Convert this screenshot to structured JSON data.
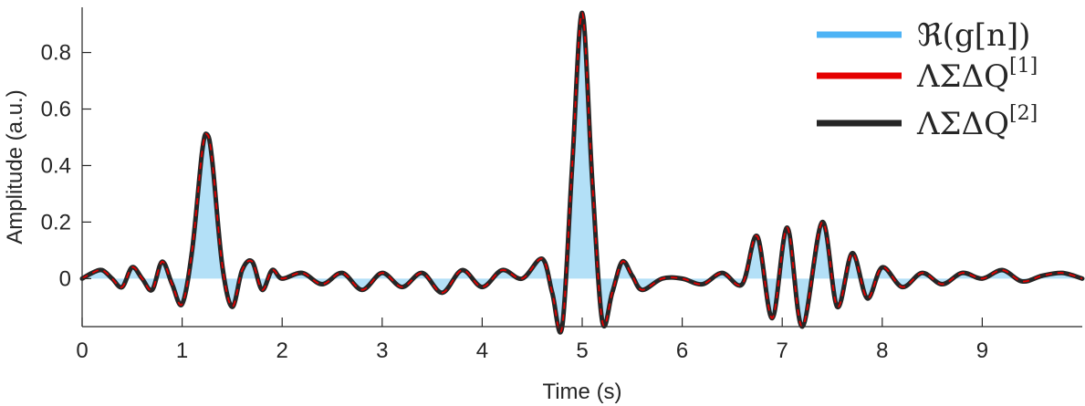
{
  "chart_data": {
    "type": "line",
    "xlabel": "Time (s)",
    "ylabel": "Amplitude (a.u.)",
    "xlim": [
      0,
      10
    ],
    "ylim": [
      -0.17,
      0.96
    ],
    "x_ticks": [
      "0",
      "1",
      "2",
      "3",
      "4",
      "5",
      "6",
      "7",
      "8",
      "9"
    ],
    "y_ticks": [
      "0",
      "0.2",
      "0.4",
      "0.6",
      "0.8"
    ],
    "grid": false,
    "legend_position": "top-right",
    "legend": [
      {
        "main": "ℜ(g[n])",
        "sup": ""
      },
      {
        "main": "ΛΣΔQ",
        "sup": "[1]"
      },
      {
        "main": "ΛΣΔQ",
        "sup": "[2]"
      }
    ],
    "colors": {
      "fill": "#b3e0f7",
      "legend_blue": "#4db3f5",
      "red": "#e50000",
      "black": "#262626",
      "axis": "#262626"
    },
    "series": [
      {
        "name": "ℜ(g[n])",
        "style": "filled-stem",
        "x": [
          0,
          0.1,
          0.2,
          0.3,
          0.4,
          0.5,
          0.6,
          0.7,
          0.8,
          0.9,
          1.0,
          1.1,
          1.2,
          1.25,
          1.3,
          1.4,
          1.5,
          1.6,
          1.7,
          1.8,
          1.9,
          2.0,
          2.2,
          2.4,
          2.6,
          2.8,
          3.0,
          3.2,
          3.4,
          3.6,
          3.8,
          4.0,
          4.2,
          4.4,
          4.6,
          4.7,
          4.8,
          4.9,
          5.0,
          5.1,
          5.2,
          5.3,
          5.4,
          5.5,
          5.6,
          5.8,
          6.0,
          6.2,
          6.4,
          6.6,
          6.75,
          6.9,
          7.05,
          7.2,
          7.4,
          7.55,
          7.7,
          7.85,
          8.0,
          8.2,
          8.4,
          8.6,
          8.8,
          9.0,
          9.2,
          9.4,
          9.6,
          9.8,
          10.0
        ],
        "y": [
          0,
          0.02,
          0.03,
          0.0,
          -0.03,
          0.04,
          0.0,
          -0.04,
          0.06,
          -0.02,
          -0.09,
          0.1,
          0.45,
          0.51,
          0.42,
          0.05,
          -0.1,
          0.03,
          0.06,
          -0.04,
          0.03,
          0.0,
          0.02,
          -0.02,
          0.02,
          -0.04,
          0.02,
          -0.03,
          0.02,
          -0.05,
          0.03,
          -0.03,
          0.03,
          0.0,
          0.07,
          -0.05,
          -0.17,
          0.4,
          0.94,
          0.35,
          -0.15,
          -0.05,
          0.06,
          0.01,
          -0.04,
          0.0,
          0.0,
          -0.02,
          0.02,
          -0.02,
          0.15,
          -0.14,
          0.18,
          -0.17,
          0.2,
          -0.1,
          0.09,
          -0.07,
          0.04,
          -0.03,
          0.02,
          -0.02,
          0.02,
          0.0,
          0.03,
          -0.01,
          0.01,
          0.02,
          0.0
        ]
      },
      {
        "name": "ΛΣΔQ[1]",
        "style": "line",
        "x": [
          0,
          0.1,
          0.2,
          0.3,
          0.4,
          0.5,
          0.6,
          0.7,
          0.8,
          0.9,
          1.0,
          1.1,
          1.2,
          1.25,
          1.3,
          1.4,
          1.5,
          1.6,
          1.7,
          1.8,
          1.9,
          2.0,
          2.2,
          2.4,
          2.6,
          2.8,
          3.0,
          3.2,
          3.4,
          3.6,
          3.8,
          4.0,
          4.2,
          4.4,
          4.6,
          4.7,
          4.8,
          4.9,
          5.0,
          5.1,
          5.2,
          5.3,
          5.4,
          5.5,
          5.6,
          5.8,
          6.0,
          6.2,
          6.4,
          6.6,
          6.75,
          6.9,
          7.05,
          7.2,
          7.4,
          7.55,
          7.7,
          7.85,
          8.0,
          8.2,
          8.4,
          8.6,
          8.8,
          9.0,
          9.2,
          9.4,
          9.6,
          9.8,
          10.0
        ],
        "y": [
          0,
          0.02,
          0.03,
          0.0,
          -0.03,
          0.04,
          0.0,
          -0.04,
          0.06,
          -0.02,
          -0.09,
          0.1,
          0.45,
          0.51,
          0.42,
          0.05,
          -0.1,
          0.03,
          0.06,
          -0.04,
          0.03,
          0.0,
          0.02,
          -0.02,
          0.02,
          -0.04,
          0.02,
          -0.03,
          0.02,
          -0.05,
          0.03,
          -0.03,
          0.03,
          0.0,
          0.07,
          -0.05,
          -0.17,
          0.4,
          0.94,
          0.35,
          -0.15,
          -0.05,
          0.06,
          0.01,
          -0.04,
          0.0,
          0.0,
          -0.02,
          0.02,
          -0.02,
          0.15,
          -0.14,
          0.18,
          -0.17,
          0.2,
          -0.1,
          0.09,
          -0.07,
          0.04,
          -0.03,
          0.02,
          -0.02,
          0.02,
          0.0,
          0.03,
          -0.01,
          0.01,
          0.02,
          0.0
        ]
      },
      {
        "name": "ΛΣΔQ[2]",
        "style": "line",
        "x": [
          0,
          0.1,
          0.2,
          0.3,
          0.4,
          0.5,
          0.6,
          0.7,
          0.8,
          0.9,
          1.0,
          1.1,
          1.2,
          1.25,
          1.3,
          1.4,
          1.5,
          1.6,
          1.7,
          1.8,
          1.9,
          2.0,
          2.2,
          2.4,
          2.6,
          2.8,
          3.0,
          3.2,
          3.4,
          3.6,
          3.8,
          4.0,
          4.2,
          4.4,
          4.6,
          4.7,
          4.8,
          4.9,
          5.0,
          5.1,
          5.2,
          5.3,
          5.4,
          5.5,
          5.6,
          5.8,
          6.0,
          6.2,
          6.4,
          6.6,
          6.75,
          6.9,
          7.05,
          7.2,
          7.4,
          7.55,
          7.7,
          7.85,
          8.0,
          8.2,
          8.4,
          8.6,
          8.8,
          9.0,
          9.2,
          9.4,
          9.6,
          9.8,
          10.0
        ],
        "y": [
          0,
          0.02,
          0.03,
          0.0,
          -0.03,
          0.04,
          0.0,
          -0.04,
          0.06,
          -0.02,
          -0.09,
          0.1,
          0.45,
          0.51,
          0.42,
          0.05,
          -0.1,
          0.03,
          0.06,
          -0.04,
          0.03,
          0.0,
          0.02,
          -0.02,
          0.02,
          -0.04,
          0.02,
          -0.03,
          0.02,
          -0.05,
          0.03,
          -0.03,
          0.03,
          0.0,
          0.07,
          -0.05,
          -0.17,
          0.4,
          0.94,
          0.35,
          -0.15,
          -0.05,
          0.06,
          0.01,
          -0.04,
          0.0,
          0.0,
          -0.02,
          0.02,
          -0.02,
          0.15,
          -0.14,
          0.18,
          -0.17,
          0.2,
          -0.1,
          0.09,
          -0.07,
          0.04,
          -0.03,
          0.02,
          -0.02,
          0.02,
          0.0,
          0.03,
          -0.01,
          0.01,
          0.02,
          0.0
        ]
      }
    ]
  }
}
